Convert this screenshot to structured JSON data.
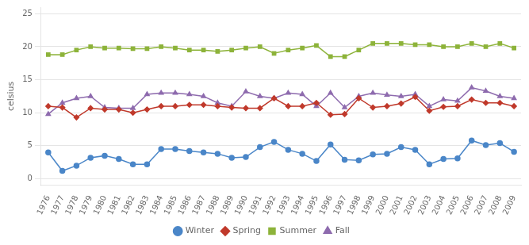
{
  "chart_data": {
    "type": "line",
    "y_label": "celsius",
    "x": [
      1976,
      1977,
      1978,
      1979,
      1980,
      1981,
      1982,
      1983,
      1984,
      1985,
      1986,
      1987,
      1988,
      1989,
      1990,
      1991,
      1992,
      1993,
      1994,
      1995,
      1996,
      1997,
      1998,
      1999,
      2000,
      2001,
      2002,
      2003,
      2004,
      2005,
      2006,
      2007,
      2008,
      2009
    ],
    "xlim": [
      1975.5,
      2009.5
    ],
    "xticks": [
      1976,
      1977,
      1978,
      1979,
      1980,
      1981,
      1982,
      1983,
      1984,
      1985,
      1986,
      1987,
      1988,
      1989,
      1990,
      1991,
      1992,
      1993,
      1994,
      1995,
      1996,
      1997,
      1998,
      1999,
      2000,
      2001,
      2002,
      2003,
      2004,
      2005,
      2006,
      2007,
      2008,
      2009
    ],
    "ylim": [
      -1,
      26
    ],
    "yticks": [
      0,
      5,
      10,
      15,
      20,
      25
    ],
    "grid": "y",
    "legend": "bottom",
    "series": [
      {
        "name": "Winter",
        "color": "#4a86c8",
        "marker": "circle",
        "values": [
          4.0,
          1.2,
          2.0,
          3.2,
          3.5,
          3.0,
          2.2,
          2.2,
          4.5,
          4.5,
          4.2,
          4.0,
          3.8,
          3.2,
          3.3,
          4.8,
          5.6,
          4.4,
          3.8,
          2.7,
          5.2,
          2.9,
          2.8,
          3.7,
          3.8,
          4.8,
          4.4,
          2.2,
          3.0,
          3.1,
          5.8,
          5.1,
          5.4,
          4.1
        ]
      },
      {
        "name": "Spring",
        "color": "#c0392b",
        "marker": "diamond",
        "values": [
          11.0,
          10.8,
          9.3,
          10.7,
          10.5,
          10.5,
          10.0,
          10.5,
          11.0,
          11.0,
          11.2,
          11.2,
          11.0,
          10.8,
          10.7,
          10.7,
          12.2,
          11.0,
          11.0,
          11.5,
          9.7,
          9.8,
          12.2,
          10.8,
          11.0,
          11.4,
          12.4,
          10.3,
          10.9,
          11.0,
          12.0,
          11.5,
          11.5,
          11.0
        ]
      },
      {
        "name": "Summer",
        "color": "#8db33a",
        "marker": "square",
        "values": [
          18.8,
          18.8,
          19.5,
          20.0,
          19.8,
          19.8,
          19.7,
          19.7,
          20.0,
          19.8,
          19.5,
          19.5,
          19.3,
          19.5,
          19.8,
          20.0,
          19.0,
          19.5,
          19.8,
          20.2,
          18.5,
          18.5,
          19.5,
          20.5,
          20.5,
          20.5,
          20.3,
          20.3,
          20.0,
          20.0,
          20.5,
          20.0,
          20.5,
          19.8
        ]
      },
      {
        "name": "Fall",
        "color": "#8e6bae",
        "marker": "triangle",
        "values": [
          9.8,
          11.5,
          12.2,
          12.5,
          10.8,
          10.7,
          10.7,
          12.8,
          13.0,
          13.0,
          12.8,
          12.5,
          11.5,
          11.0,
          13.2,
          12.5,
          12.2,
          13.0,
          12.8,
          11.0,
          13.0,
          10.8,
          12.5,
          13.0,
          12.7,
          12.5,
          12.8,
          11.0,
          12.0,
          11.8,
          13.8,
          13.3,
          12.5,
          12.2
        ]
      }
    ]
  }
}
